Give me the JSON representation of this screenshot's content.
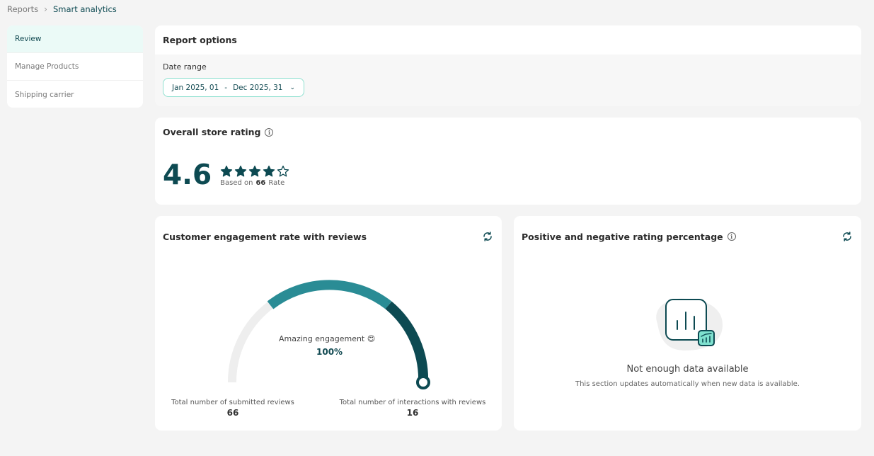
{
  "breadcrumb": {
    "parent": "Reports",
    "current": "Smart analytics"
  },
  "sidebar": {
    "items": [
      {
        "label": "Review"
      },
      {
        "label": "Manage Products"
      },
      {
        "label": "Shipping carrier"
      }
    ]
  },
  "report_options": {
    "title": "Report options",
    "date_label": "Date range",
    "date_start": "Jan 2025, 01",
    "date_end": "Dec 2025, 31"
  },
  "overall_rating": {
    "title": "Overall store rating",
    "value": "4.6",
    "stars_filled": 4,
    "stars_total": 5,
    "based_prefix": "Based on",
    "based_count": "66",
    "based_suffix": "Rate"
  },
  "engagement": {
    "title": "Customer engagement rate with reviews",
    "status": "Amazing engagement 😍",
    "percent": "100%",
    "level": 1.0,
    "submitted_label": "Total number of submitted reviews",
    "submitted_value": "66",
    "interactions_label": "Total number of interactions with reviews",
    "interactions_value": "16"
  },
  "positive_negative": {
    "title": "Positive and negative rating percentage",
    "empty_title": "Not enough data available",
    "empty_sub": "This section updates automatically when new data is available."
  },
  "colors": {
    "primary": "#0d4a52",
    "accent": "#2a8c95",
    "track": "#eeeeee",
    "active_bg": "#ebfaf7"
  }
}
